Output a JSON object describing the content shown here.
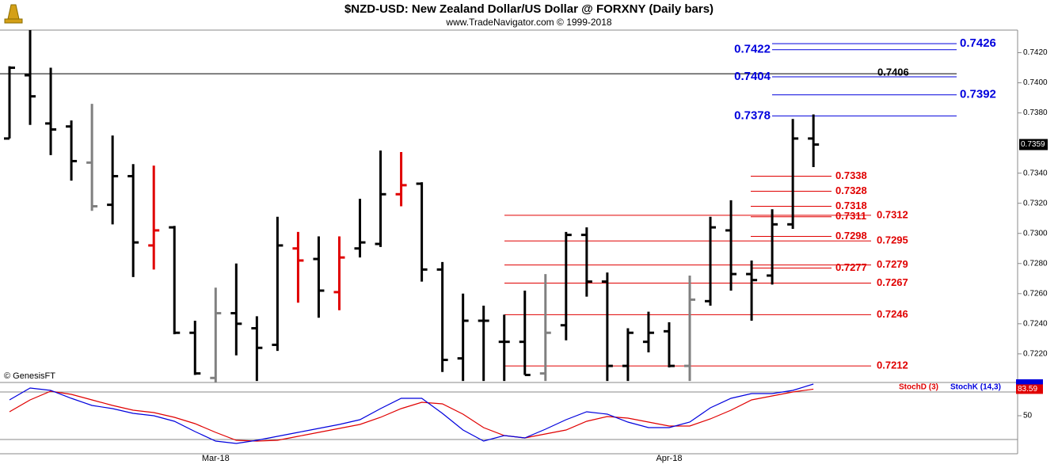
{
  "chart_data": [
    {
      "type": "ohlc",
      "title": "$NZD-USD:  New Zealand Dollar/US Dollar @ FORXNY  (Daily bars)",
      "subtitle": "www.TradeNavigator.com © 1999-2018",
      "credit": "© GenesisFT",
      "categories": [
        null,
        null,
        null,
        null,
        null,
        null,
        null,
        null,
        null,
        null,
        "Mar-18",
        null,
        null,
        null,
        null,
        null,
        null,
        null,
        null,
        null,
        null,
        null,
        null,
        null,
        null,
        null,
        null,
        null,
        null,
        null,
        null,
        null,
        "Apr-18",
        null,
        null,
        null,
        null,
        null,
        null,
        null
      ],
      "open": [
        0.7363,
        0.7405,
        0.7373,
        0.7371,
        0.7347,
        0.7319,
        0.7338,
        0.7292,
        0.7304,
        0.7234,
        0.7204,
        0.7247,
        0.7237,
        0.7226,
        0.729,
        0.7283,
        0.7261,
        0.729,
        0.7293,
        0.7326,
        0.7333,
        0.7276,
        0.7217,
        0.7242,
        0.7228,
        0.7228,
        0.7207,
        0.7239,
        0.7299,
        0.7268,
        0.7212,
        0.7228,
        0.7235,
        0.7212,
        0.7255,
        0.7302,
        0.7273,
        0.7272,
        0.7306,
        0.7363
      ],
      "high": [
        0.7411,
        0.7435,
        0.741,
        0.7375,
        0.7386,
        0.7365,
        0.7346,
        0.7345,
        0.7305,
        0.7242,
        0.7264,
        0.728,
        0.7245,
        0.7311,
        0.7301,
        0.7298,
        0.7298,
        0.7323,
        0.7355,
        0.7354,
        0.7334,
        0.7281,
        0.726,
        0.7252,
        0.7246,
        0.7262,
        0.7273,
        0.7301,
        0.7304,
        0.7274,
        0.7237,
        0.7248,
        0.7241,
        0.7272,
        0.7311,
        0.7322,
        0.7282,
        0.7316,
        0.7376,
        0.7379
      ],
      "low": [
        0.7363,
        0.7372,
        0.7352,
        0.7335,
        0.7315,
        0.7306,
        0.7271,
        0.7276,
        0.7233,
        0.7206,
        0.7201,
        0.7219,
        0.7202,
        0.7222,
        0.7254,
        0.7244,
        0.7249,
        0.7284,
        0.7291,
        0.7318,
        0.7268,
        0.7208,
        0.7202,
        0.7202,
        0.7202,
        0.7206,
        0.7202,
        0.7229,
        0.7258,
        0.7202,
        0.7202,
        0.7221,
        0.7211,
        0.7202,
        0.7252,
        0.7262,
        0.7242,
        0.7266,
        0.7303,
        0.7344
      ],
      "close": [
        0.741,
        0.7391,
        0.7369,
        0.7348,
        0.7318,
        0.7338,
        0.7294,
        0.7302,
        0.7234,
        0.7207,
        0.7247,
        0.724,
        0.7224,
        0.7292,
        0.7282,
        0.7262,
        0.7284,
        0.7294,
        0.7326,
        0.7332,
        0.7276,
        0.7216,
        0.7242,
        0.7242,
        0.7228,
        0.7206,
        0.7234,
        0.7299,
        0.7268,
        0.7212,
        0.7234,
        0.7234,
        0.7212,
        0.7256,
        0.7304,
        0.7273,
        0.7269,
        0.7306,
        0.7363,
        0.7359
      ],
      "colors": [
        "#000000",
        "#000000",
        "#000000",
        "#000000",
        "#808080",
        "#000000",
        "#000000",
        "#e00000",
        "#000000",
        "#000000",
        "#808080",
        "#000000",
        "#000000",
        "#000000",
        "#e00000",
        "#000000",
        "#e00000",
        "#000000",
        "#000000",
        "#e00000",
        "#000000",
        "#000000",
        "#000000",
        "#000000",
        "#000000",
        "#000000",
        "#808080",
        "#000000",
        "#000000",
        "#000000",
        "#000000",
        "#000000",
        "#000000",
        "#808080",
        "#000000",
        "#000000",
        "#000000",
        "#000000",
        "#000000",
        "#000000"
      ],
      "ylim": [
        0.7201,
        0.7435
      ],
      "yticks": [
        {
          "value": 0.722,
          "label": "0.7220"
        },
        {
          "value": 0.724,
          "label": "0.7240"
        },
        {
          "value": 0.726,
          "label": "0.7260"
        },
        {
          "value": 0.728,
          "label": "0.7280"
        },
        {
          "value": 0.73,
          "label": "0.7300"
        },
        {
          "value": 0.732,
          "label": "0.7320"
        },
        {
          "value": 0.734,
          "label": "0.7340"
        },
        {
          "value": 0.738,
          "label": "0.7380"
        },
        {
          "value": 0.74,
          "label": "0.7400"
        },
        {
          "value": 0.742,
          "label": "0.7420"
        }
      ],
      "levels": [
        {
          "value": 0.7426,
          "color": "#0000dd"
        },
        {
          "value": 0.7422,
          "color": "#0000dd"
        },
        {
          "value": 0.7406,
          "color": "#000000"
        },
        {
          "value": 0.7404,
          "color": "#0000dd"
        },
        {
          "value": 0.7392,
          "color": "#0000dd"
        },
        {
          "value": 0.7378,
          "color": "#0000dd"
        },
        {
          "value": 0.7338,
          "color": "#e00000"
        },
        {
          "value": 0.7328,
          "color": "#e00000"
        },
        {
          "value": 0.7318,
          "color": "#e00000"
        },
        {
          "value": 0.7312,
          "color": "#e00000"
        },
        {
          "value": 0.7311,
          "color": "#e00000"
        },
        {
          "value": 0.7298,
          "color": "#e00000"
        },
        {
          "value": 0.7295,
          "color": "#e00000"
        },
        {
          "value": 0.7279,
          "color": "#e00000"
        },
        {
          "value": 0.7277,
          "color": "#e00000"
        },
        {
          "value": 0.7267,
          "color": "#e00000"
        },
        {
          "value": 0.7246,
          "color": "#e00000"
        },
        {
          "value": 0.7212,
          "color": "#e00000"
        }
      ]
    },
    {
      "type": "line",
      "series": [
        {
          "name": "StochD (3)",
          "color": "#e00000",
          "values": [
            55,
            70,
            81,
            77,
            70,
            63,
            57,
            54,
            48,
            40,
            29,
            19,
            18,
            19,
            24,
            29,
            34,
            39,
            48,
            59,
            67,
            65,
            52,
            35,
            25,
            22,
            27,
            32,
            43,
            49,
            47,
            42,
            37,
            37,
            46,
            57,
            70,
            75,
            80,
            83.59
          ]
        },
        {
          "name": "StochK (14,3)",
          "color": "#0000dd",
          "values": [
            70,
            85,
            82,
            72,
            63,
            59,
            53,
            50,
            43,
            30,
            18,
            15,
            19,
            24,
            29,
            34,
            39,
            45,
            59,
            72,
            72,
            53,
            32,
            18,
            25,
            22,
            33,
            45,
            55,
            52,
            42,
            35,
            35,
            42,
            60,
            72,
            78,
            78,
            82,
            90
          ]
        }
      ],
      "ylim": [
        2,
        92
      ],
      "yticks": [
        50
      ],
      "hlines": [
        20,
        80
      ]
    }
  ]
}
